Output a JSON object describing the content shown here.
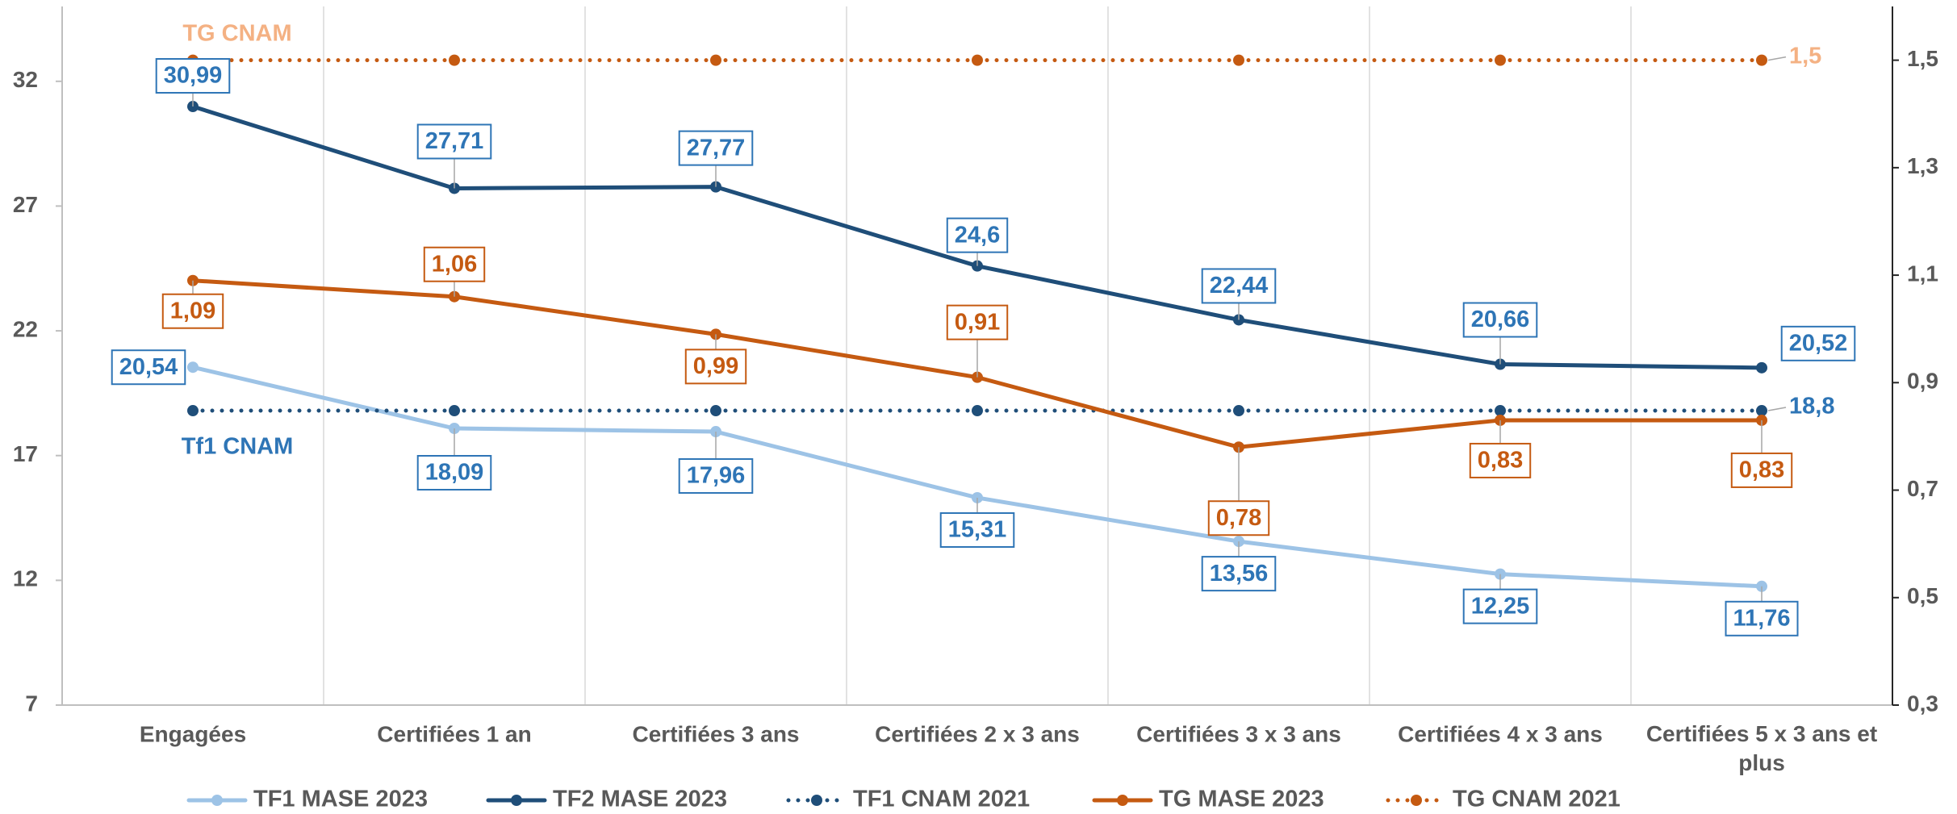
{
  "chart_data": {
    "type": "line",
    "categories": [
      "Engagées",
      "Certifiées 1 an",
      "Certifiées 3 ans",
      "Certifiées 2 x 3 ans",
      "Certifiées 3 x 3 ans",
      "Certifiées 4 x 3 ans",
      "Certifiées 5 x 3 ans et plus"
    ],
    "ylim": [
      7,
      35
    ],
    "yticks": [
      7,
      12,
      17,
      22,
      27,
      32
    ],
    "y2lim": [
      0.3,
      1.6
    ],
    "y2ticks": [
      {
        "value": 0.3,
        "label": "0,3"
      },
      {
        "value": 0.5,
        "label": "0,5"
      },
      {
        "value": 0.7,
        "label": "0,7"
      },
      {
        "value": 0.9,
        "label": "0,9"
      },
      {
        "value": 1.1,
        "label": "1,1"
      },
      {
        "value": 1.3,
        "label": "1,3"
      },
      {
        "value": 1.5,
        "label": "1,5"
      }
    ],
    "grid": true,
    "legend": "bottom",
    "annotations": [
      {
        "text": "TG CNAM",
        "color": "#f4b183"
      },
      {
        "text": "Tf1 CNAM",
        "color": "#2e75b6"
      }
    ],
    "series": [
      {
        "name": "TF1 MASE 2023",
        "color": "#9dc3e6",
        "style": "solid",
        "values": [
          20.54,
          18.09,
          17.96,
          15.31,
          13.56,
          12.25,
          11.76
        ],
        "value_labels": [
          "20,54",
          "18,09",
          "17,96",
          "15,31",
          "13,56",
          "12,25",
          "11,76"
        ]
      },
      {
        "name": "TF2 MASE 2023",
        "color": "#1f4e79",
        "style": "solid",
        "values": [
          30.99,
          27.71,
          27.77,
          24.6,
          22.44,
          20.66,
          20.52
        ],
        "value_labels": [
          "30,99",
          "27,71",
          "27,77",
          "24,6",
          "22,44",
          "20,66",
          "20,52"
        ]
      },
      {
        "name": "TF1 CNAM 2021",
        "color": "#1f4e79",
        "style": "dotted",
        "values": [
          18.8,
          18.8,
          18.8,
          18.8,
          18.8,
          18.8,
          18.8
        ],
        "value_labels": [
          null,
          null,
          null,
          null,
          null,
          null,
          "18,8"
        ]
      },
      {
        "name": "TG MASE 2023",
        "color": "#c55a11",
        "style": "solid",
        "axis": "y2",
        "values": [
          1.09,
          1.06,
          0.99,
          0.91,
          0.78,
          0.83,
          0.83
        ],
        "value_labels": [
          "1,09",
          "1,06",
          "0,99",
          "0,91",
          "0,78",
          "0,83",
          "0,83"
        ]
      },
      {
        "name": "TG CNAM 2021",
        "color": "#c55a11",
        "style": "dotted",
        "axis": "y2",
        "values": [
          1.5,
          1.5,
          1.5,
          1.5,
          1.5,
          1.5,
          1.5
        ],
        "value_labels": [
          null,
          null,
          null,
          null,
          null,
          null,
          "1,5"
        ]
      }
    ]
  }
}
